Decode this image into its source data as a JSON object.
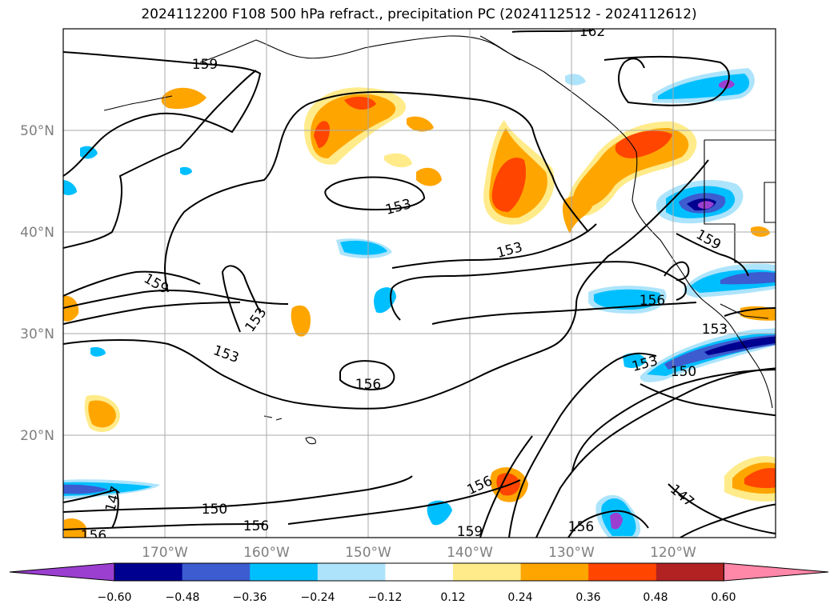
{
  "title": "2024112200 F108 500 hPa refract., precipitation PC (2024112512 - 2024112612)",
  "map": {
    "lat_labels": [
      "50°N",
      "40°N",
      "30°N",
      "20°N"
    ],
    "lon_labels": [
      "170°W",
      "160°W",
      "150°W",
      "140°W",
      "130°W",
      "120°W"
    ],
    "contour_labels": [
      "162",
      "159",
      "159",
      "159",
      "153",
      "153",
      "153",
      "153",
      "156",
      "156",
      "153",
      "150",
      "153",
      "156",
      "159",
      "156",
      "150",
      "156",
      "147",
      "147",
      "156"
    ]
  },
  "colorbar": {
    "ticks": [
      "−0.60",
      "−0.48",
      "−0.36",
      "−0.24",
      "−0.12",
      "0.12",
      "0.24",
      "0.36",
      "0.48",
      "0.60"
    ],
    "colors": [
      "#9b3fd0",
      "#000090",
      "#3c5ccf",
      "#00bfff",
      "#ade4fb",
      "#ffffff",
      "#ffeb8a",
      "#ffa500",
      "#ff4500",
      "#b22222",
      "#ff87a8"
    ]
  }
}
